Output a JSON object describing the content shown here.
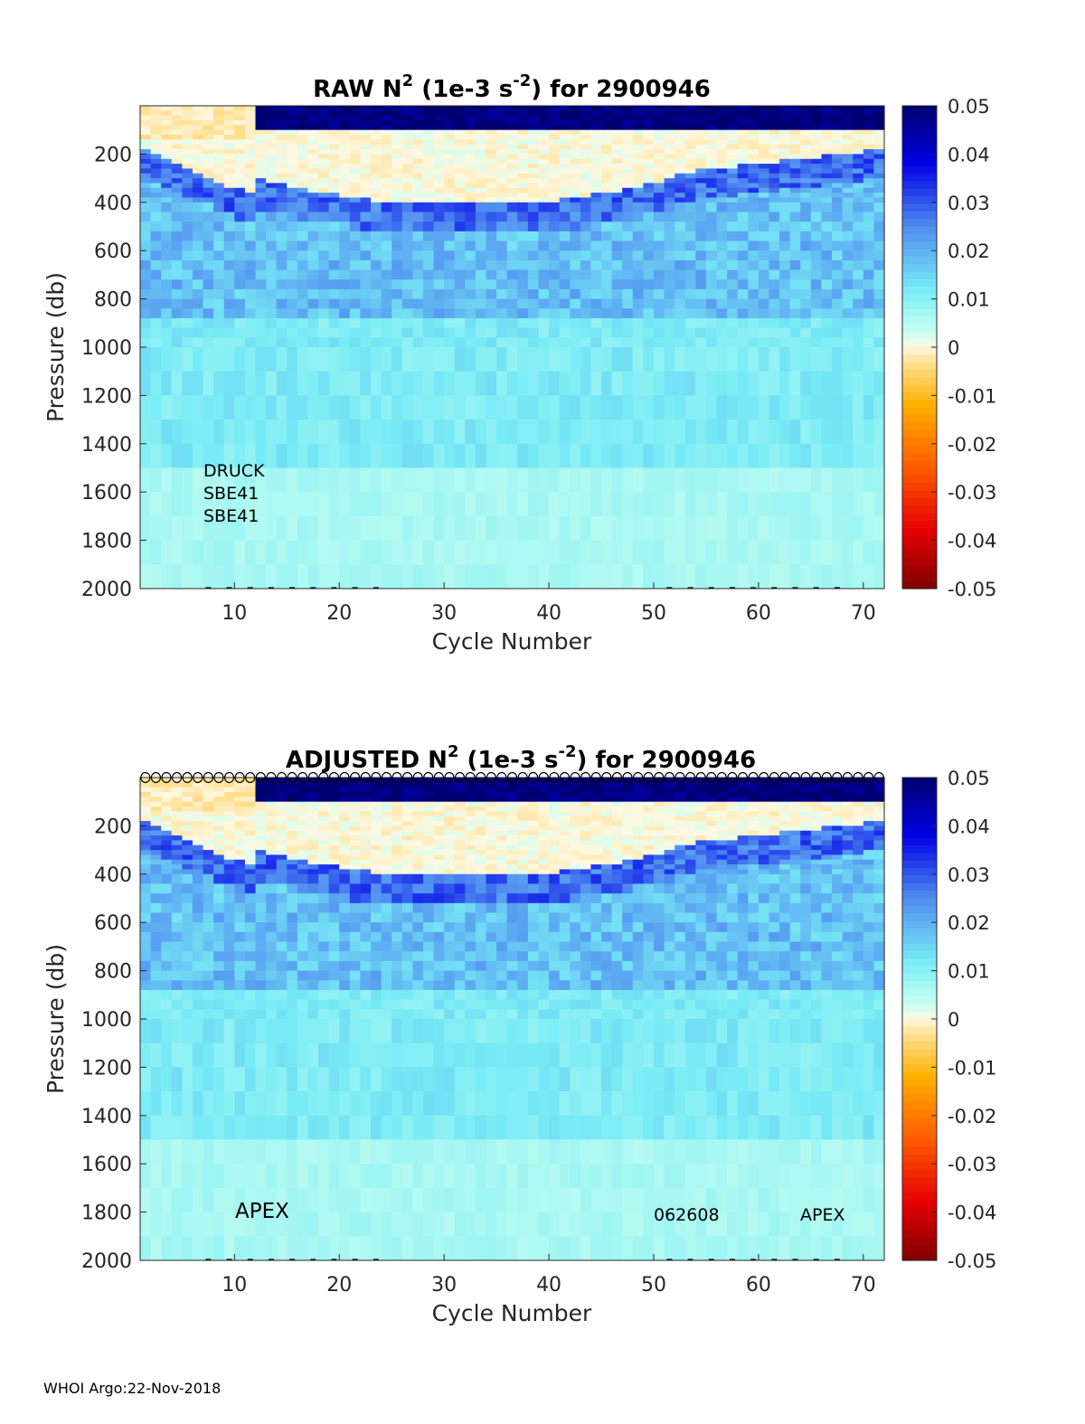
{
  "chart_data": [
    {
      "type": "heatmap",
      "title_prefix": "RAW N",
      "title_exp": "2",
      "title_mid": " (1e-3 s",
      "title_exp2": "-2",
      "title_suffix": ") for 2900946",
      "xlabel": "Cycle Number",
      "ylabel": "Pressure (db)",
      "xlim": [
        1,
        72
      ],
      "ylim": [
        2000,
        0
      ],
      "x_ticks": [
        "10",
        "20",
        "30",
        "40",
        "50",
        "60",
        "70"
      ],
      "y_ticks": [
        "200",
        "400",
        "600",
        "800",
        "1000",
        "1200",
        "1400",
        "1600",
        "1800",
        "2000"
      ],
      "colorbar": {
        "range": [
          -0.05,
          0.05
        ],
        "ticks": [
          "0.05",
          "0.04",
          "0.03",
          "0.02",
          "0.01",
          "0",
          "-0.01",
          "-0.02",
          "-0.03",
          "-0.04",
          "-0.05"
        ]
      },
      "annotations": [
        "DRUCK",
        "SBE41",
        "SBE41"
      ],
      "qc_markers": false
    },
    {
      "type": "heatmap",
      "title_prefix": "ADJUSTED N",
      "title_exp": "2",
      "title_mid": " (1e-3 s",
      "title_exp2": "-2",
      "title_suffix": ") for 2900946",
      "xlabel": "Cycle Number",
      "ylabel": "Pressure (db)",
      "xlim": [
        1,
        72
      ],
      "ylim": [
        2000,
        0
      ],
      "x_ticks": [
        "10",
        "20",
        "30",
        "40",
        "50",
        "60",
        "70"
      ],
      "y_ticks": [
        "200",
        "400",
        "600",
        "800",
        "1000",
        "1200",
        "1400",
        "1600",
        "1800",
        "2000"
      ],
      "colorbar": {
        "range": [
          -0.05,
          0.05
        ],
        "ticks": [
          "0.05",
          "0.04",
          "0.03",
          "0.02",
          "0.01",
          "0",
          "-0.01",
          "-0.02",
          "-0.03",
          "-0.04",
          "-0.05"
        ]
      },
      "annotations": [
        "APEX",
        "062608",
        "APEX"
      ],
      "qc_markers": true
    }
  ],
  "footer": "WHOI Argo:22-Nov-2018"
}
